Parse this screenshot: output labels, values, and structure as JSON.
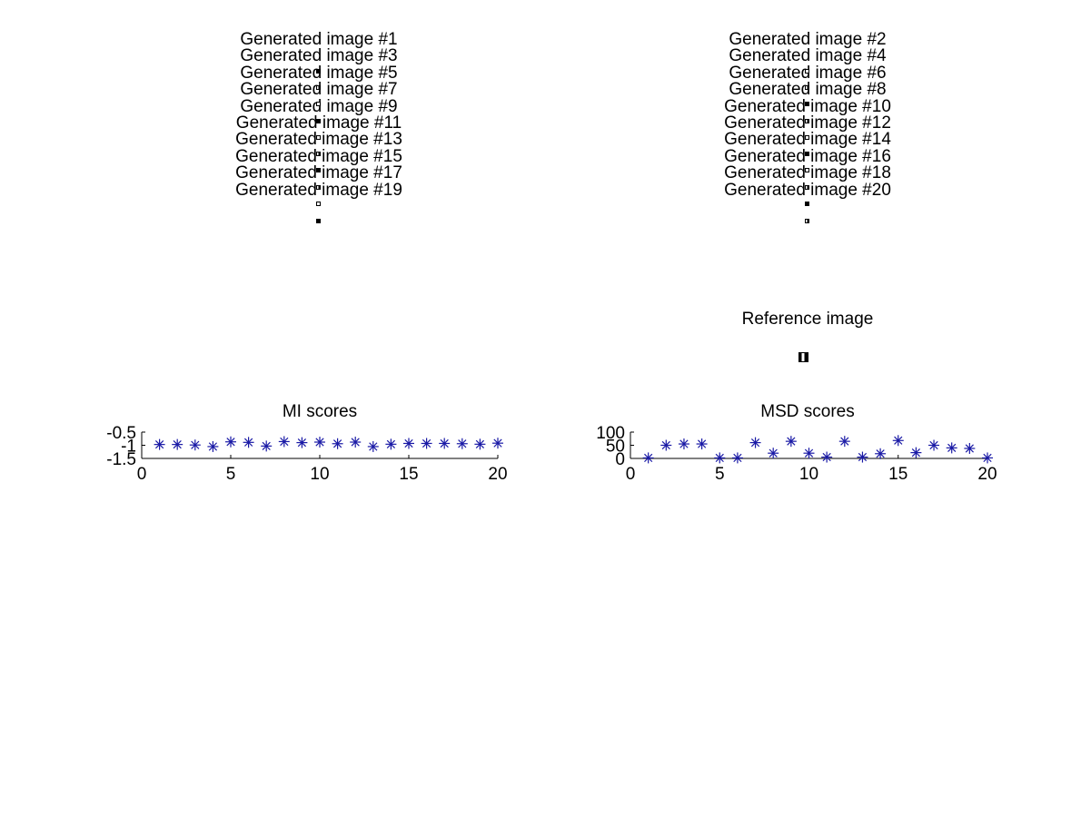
{
  "generated_titles": [
    "Generated image #1",
    "Generated image #2",
    "Generated image #3",
    "Generated image #4",
    "Generated image #5",
    "Generated image #6",
    "Generated image #7",
    "Generated image #8",
    "Generated image #9",
    "Generated image #10",
    "Generated image #11",
    "Generated image #12",
    "Generated image #13",
    "Generated image #14",
    "Generated image #15",
    "Generated image #16",
    "Generated image #17",
    "Generated image #18",
    "Generated image #19",
    "Generated image #20"
  ],
  "reference": {
    "title": "Reference image"
  },
  "colors": {
    "marker": "#1a1aa6",
    "axis": "#000000"
  },
  "chart_data": [
    {
      "type": "scatter",
      "title": "MI scores",
      "marker": "asterisk",
      "x": [
        1,
        2,
        3,
        4,
        5,
        6,
        7,
        8,
        9,
        10,
        11,
        12,
        13,
        14,
        15,
        16,
        17,
        18,
        19,
        20
      ],
      "y": [
        -0.97,
        -0.97,
        -0.99,
        -1.05,
        -0.87,
        -0.89,
        -1.03,
        -0.86,
        -0.9,
        -0.88,
        -0.94,
        -0.88,
        -1.05,
        -0.96,
        -0.93,
        -0.93,
        -0.93,
        -0.94,
        -0.96,
        -0.92
      ],
      "xlim": [
        0,
        20
      ],
      "ylim": [
        -1.5,
        -0.5
      ],
      "xticks": [
        0,
        5,
        10,
        15,
        20
      ],
      "yticks": [
        -1.5,
        -1,
        -0.5
      ],
      "xtick_labels": [
        "0",
        "5",
        "10",
        "15",
        "20"
      ],
      "ytick_labels": [
        "-1.5",
        "-1",
        "-0.5"
      ]
    },
    {
      "type": "scatter",
      "title": "MSD scores",
      "marker": "asterisk",
      "x": [
        1,
        2,
        3,
        4,
        5,
        6,
        7,
        8,
        9,
        10,
        11,
        12,
        13,
        14,
        15,
        16,
        17,
        18,
        19,
        20
      ],
      "y": [
        2,
        50,
        55,
        55,
        2,
        2,
        60,
        20,
        65,
        20,
        5,
        65,
        5,
        18,
        68,
        22,
        50,
        40,
        38,
        2
      ],
      "xlim": [
        0,
        20
      ],
      "ylim": [
        0,
        100
      ],
      "xticks": [
        0,
        5,
        10,
        15,
        20
      ],
      "yticks": [
        0,
        50,
        100
      ],
      "xtick_labels": [
        "0",
        "5",
        "10",
        "15",
        "20"
      ],
      "ytick_labels": [
        "0",
        "50",
        "100"
      ]
    }
  ]
}
